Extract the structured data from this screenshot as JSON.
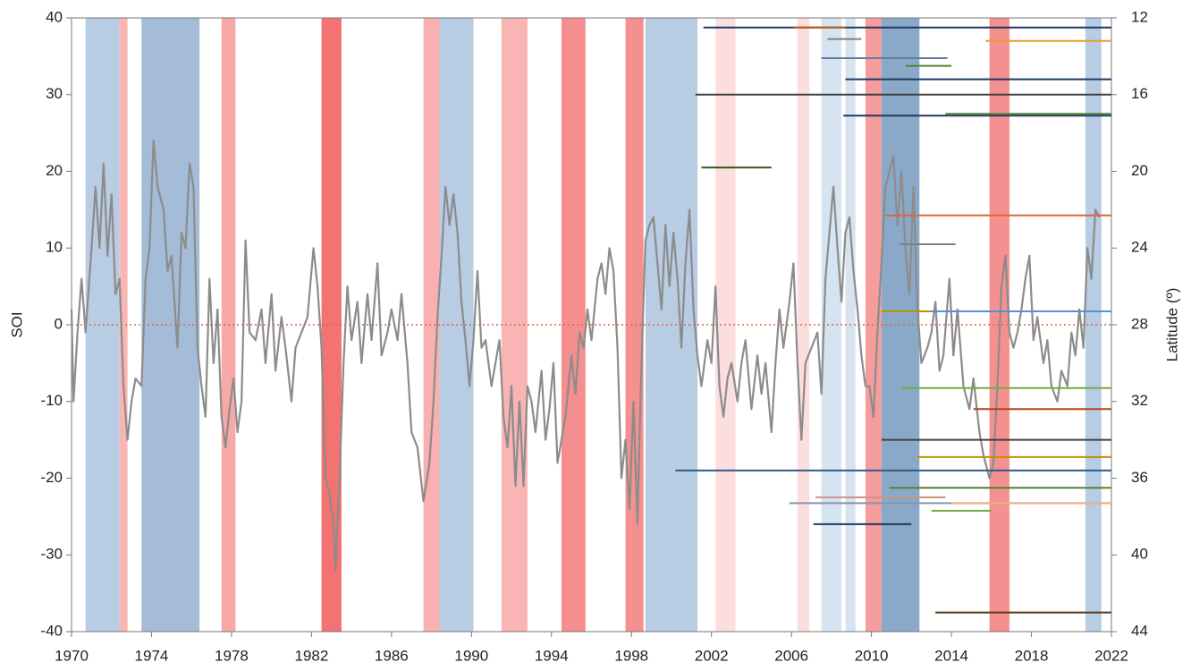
{
  "chart_data": {
    "type": "line",
    "ylabel": "SOI",
    "y2label": "Latitude (º)",
    "xlim": [
      1970,
      2022
    ],
    "xticks": [
      1970,
      1974,
      1978,
      1982,
      1986,
      1990,
      1994,
      1998,
      2002,
      2006,
      2010,
      2014,
      2018,
      2022
    ],
    "ylim": [
      -40,
      40
    ],
    "yticks": [
      -40,
      -30,
      -20,
      -10,
      0,
      10,
      20,
      30,
      40
    ],
    "y2lim": [
      12,
      44
    ],
    "y2ticks": [
      12,
      16,
      20,
      24,
      28,
      32,
      36,
      40,
      44
    ],
    "y2_inverted": true,
    "zero_line": {
      "value": 0,
      "color": "#e0643a"
    },
    "bands": [
      {
        "x": [
          1970.7,
          1972.4
        ],
        "color": "#b8cce4"
      },
      {
        "x": [
          1972.4,
          1972.8
        ],
        "color": "#f9b4b4"
      },
      {
        "x": [
          1973.5,
          1976.4
        ],
        "color": "#a4bcd8"
      },
      {
        "x": [
          1977.5,
          1978.2
        ],
        "color": "#f9a8a8"
      },
      {
        "x": [
          1982.5,
          1983.5
        ],
        "color": "#f47272"
      },
      {
        "x": [
          1987.6,
          1988.4
        ],
        "color": "#f9b0b0"
      },
      {
        "x": [
          1988.4,
          1990.1
        ],
        "color": "#b8cce4"
      },
      {
        "x": [
          1991.5,
          1992.8
        ],
        "color": "#f9b4b4"
      },
      {
        "x": [
          1994.5,
          1995.7
        ],
        "color": "#f58e8e"
      },
      {
        "x": [
          1997.7,
          1998.6
        ],
        "color": "#f59090"
      },
      {
        "x": [
          1998.7,
          2001.3
        ],
        "color": "#b8cce4"
      },
      {
        "x": [
          2002.2,
          2003.2
        ],
        "color": "#fcdede"
      },
      {
        "x": [
          2006.3,
          2006.9
        ],
        "color": "#fcdede"
      },
      {
        "x": [
          2007.5,
          2008.5
        ],
        "color": "#d6e3f1"
      },
      {
        "x": [
          2008.7,
          2009.2
        ],
        "color": "#d6e3f1"
      },
      {
        "x": [
          2009.7,
          2010.5
        ],
        "color": "#f59c9c"
      },
      {
        "x": [
          2010.5,
          2012.4
        ],
        "color": "#8aa8c8"
      },
      {
        "x": [
          2015.9,
          2016.9
        ],
        "color": "#f59090"
      },
      {
        "x": [
          2020.7,
          2021.5
        ],
        "color": "#b8cce4"
      }
    ],
    "series": [
      {
        "color": "#8c8c8c",
        "axis": "y",
        "x": [
          1970.0,
          1970.1,
          1970.3,
          1970.5,
          1970.7,
          1971.0,
          1971.2,
          1971.4,
          1971.6,
          1971.8,
          1972.0,
          1972.2,
          1972.4,
          1972.6,
          1972.8,
          1973.0,
          1973.2,
          1973.5,
          1973.7,
          1973.9,
          1974.1,
          1974.3,
          1974.6,
          1974.8,
          1975.0,
          1975.3,
          1975.5,
          1975.7,
          1975.9,
          1976.1,
          1976.3,
          1976.5,
          1976.7,
          1976.9,
          1977.1,
          1977.3,
          1977.5,
          1977.7,
          1977.9,
          1978.1,
          1978.3,
          1978.5,
          1978.7,
          1978.9,
          1979.2,
          1979.5,
          1979.7,
          1980.0,
          1980.2,
          1980.5,
          1980.7,
          1981.0,
          1981.2,
          1981.5,
          1981.8,
          1982.1,
          1982.3,
          1982.5,
          1982.7,
          1982.9,
          1983.1,
          1983.2,
          1983.4,
          1983.6,
          1983.8,
          1984.0,
          1984.3,
          1984.5,
          1984.8,
          1985.0,
          1985.3,
          1985.5,
          1985.8,
          1986.0,
          1986.3,
          1986.5,
          1986.8,
          1987.0,
          1987.3,
          1987.6,
          1987.9,
          1988.1,
          1988.3,
          1988.5,
          1988.7,
          1988.9,
          1989.1,
          1989.3,
          1989.5,
          1989.7,
          1989.9,
          1990.1,
          1990.3,
          1990.5,
          1990.7,
          1991.0,
          1991.2,
          1991.4,
          1991.6,
          1991.8,
          1992.0,
          1992.2,
          1992.4,
          1992.6,
          1992.8,
          1993.0,
          1993.2,
          1993.5,
          1993.7,
          1993.9,
          1994.1,
          1994.3,
          1994.5,
          1994.7,
          1995.0,
          1995.2,
          1995.4,
          1995.6,
          1995.8,
          1996.0,
          1996.3,
          1996.5,
          1996.7,
          1996.9,
          1997.1,
          1997.3,
          1997.5,
          1997.7,
          1997.9,
          1998.1,
          1998.3,
          1998.5,
          1998.7,
          1998.9,
          1999.1,
          1999.3,
          1999.5,
          1999.7,
          1999.9,
          2000.1,
          2000.3,
          2000.5,
          2000.7,
          2000.9,
          2001.1,
          2001.3,
          2001.5,
          2001.8,
          2002.0,
          2002.2,
          2002.4,
          2002.6,
          2002.8,
          2003.0,
          2003.3,
          2003.5,
          2003.7,
          2004.0,
          2004.3,
          2004.5,
          2004.7,
          2005.0,
          2005.2,
          2005.4,
          2005.6,
          2005.9,
          2006.1,
          2006.3,
          2006.5,
          2006.7,
          2007.0,
          2007.3,
          2007.5,
          2007.7,
          2007.9,
          2008.1,
          2008.3,
          2008.5,
          2008.7,
          2008.9,
          2009.1,
          2009.3,
          2009.5,
          2009.7,
          2009.9,
          2010.1,
          2010.3,
          2010.5,
          2010.7,
          2010.9,
          2011.1,
          2011.3,
          2011.5,
          2011.7,
          2011.9,
          2012.1,
          2012.3,
          2012.5,
          2012.8,
          2013.0,
          2013.2,
          2013.4,
          2013.6,
          2013.9,
          2014.1,
          2014.3,
          2014.6,
          2014.9,
          2015.1,
          2015.4,
          2015.6,
          2015.9,
          2016.1,
          2016.3,
          2016.5,
          2016.7,
          2016.9,
          2017.1,
          2017.3,
          2017.5,
          2017.7,
          2017.9,
          2018.1,
          2018.3,
          2018.6,
          2018.8,
          2019.0,
          2019.3,
          2019.5,
          2019.8,
          2020.0,
          2020.2,
          2020.4,
          2020.6,
          2020.8,
          2021.0,
          2021.2,
          2021.4
        ],
        "values": [
          2,
          -10,
          -1,
          6,
          -1,
          10,
          18,
          10,
          21,
          9,
          17,
          4,
          6,
          -8,
          -15,
          -10,
          -7,
          -8,
          6,
          10,
          24,
          18,
          15,
          7,
          9,
          -3,
          12,
          10,
          21,
          18,
          -3,
          -8,
          -12,
          6,
          -5,
          2,
          -12,
          -16,
          -11,
          -7,
          -14,
          -10,
          11,
          -1,
          -2,
          2,
          -5,
          4,
          -6,
          1,
          -3,
          -10,
          -3,
          -1,
          1,
          10,
          5,
          -3,
          -20,
          -22,
          -26,
          -32,
          -20,
          -5,
          5,
          -2,
          3,
          -5,
          4,
          -2,
          8,
          -4,
          -1,
          2,
          -2,
          4,
          -5,
          -14,
          -16,
          -23,
          -18,
          -10,
          1,
          9,
          18,
          13,
          17,
          12,
          3,
          -2,
          -8,
          -2,
          7,
          -3,
          -2,
          -8,
          -5,
          -2,
          -12,
          -16,
          -8,
          -21,
          -10,
          -21,
          -8,
          -10,
          -14,
          -6,
          -15,
          -11,
          -5,
          -18,
          -15,
          -12,
          -4,
          -9,
          -1,
          -3,
          2,
          -2,
          6,
          8,
          4,
          10,
          7,
          -3,
          -20,
          -15,
          -24,
          -10,
          -26,
          -5,
          11,
          13,
          14,
          8,
          2,
          13,
          5,
          12,
          6,
          -3,
          8,
          15,
          2,
          -4,
          -8,
          -2,
          -5,
          5,
          -8,
          -12,
          -7,
          -5,
          -10,
          -5,
          -2,
          -11,
          -4,
          -9,
          -5,
          -14,
          -5,
          2,
          -3,
          3,
          8,
          -5,
          -15,
          -5,
          -3,
          -1,
          -9,
          6,
          12,
          18,
          10,
          3,
          12,
          14,
          7,
          2,
          -4,
          -8,
          -8,
          -12,
          -1,
          8,
          18,
          20,
          22,
          13,
          20,
          10,
          4,
          18,
          2,
          -5,
          -3,
          -1,
          3,
          -6,
          -4,
          6,
          -4,
          2,
          -8,
          -11,
          -7,
          -14,
          -17,
          -20,
          -18,
          -8,
          5,
          9,
          -1,
          -3,
          -1,
          2,
          6,
          9,
          -2,
          1,
          -5,
          -2,
          -8,
          -10,
          -6,
          -8,
          -1,
          -4,
          2,
          -3,
          10,
          6,
          15,
          14
        ]
      },
      {
        "color": "#1f3864",
        "axis": "y2",
        "x": [
          2001.6,
          2022
        ],
        "values": [
          12.5,
          12.5
        ]
      },
      {
        "color": "#c55a11",
        "axis": "y2",
        "x": [
          2006.1,
          2008.7
        ],
        "values": [
          12.5,
          12.5
        ]
      },
      {
        "color": "#808080",
        "axis": "y2",
        "x": [
          2007.8,
          2009.5
        ],
        "values": [
          13.1,
          13.1
        ]
      },
      {
        "color": "#ed9b2f",
        "axis": "y2",
        "x": [
          2015.7,
          2022
        ],
        "values": [
          13.2,
          13.2
        ]
      },
      {
        "color": "#5f7fa6",
        "axis": "y2",
        "x": [
          2007.5,
          2013.8
        ],
        "values": [
          14.1,
          14.1
        ]
      },
      {
        "color": "#548235",
        "axis": "y2",
        "x": [
          2011.7,
          2014.0
        ],
        "values": [
          14.5,
          14.5
        ]
      },
      {
        "color": "#1f3864",
        "axis": "y2",
        "x": [
          2008.7,
          2022
        ],
        "values": [
          15.2,
          15.2
        ]
      },
      {
        "color": "#404040",
        "axis": "y2",
        "x": [
          2001.2,
          2022
        ],
        "values": [
          16.0,
          16.0
        ]
      },
      {
        "color": "#1f3864",
        "axis": "y2",
        "x": [
          2008.6,
          2022
        ],
        "values": [
          17.1,
          17.1
        ]
      },
      {
        "color": "#548235",
        "axis": "y2",
        "x": [
          2013.7,
          2022
        ],
        "values": [
          17.0,
          17.0
        ]
      },
      {
        "color": "#375623",
        "axis": "y2",
        "x": [
          2001.5,
          2005.0
        ],
        "values": [
          19.8,
          19.8
        ]
      },
      {
        "color": "#e0643a",
        "axis": "y2",
        "x": [
          2010.7,
          2022
        ],
        "values": [
          22.3,
          22.3
        ]
      },
      {
        "color": "#808080",
        "axis": "y2",
        "x": [
          2011.4,
          2014.2
        ],
        "values": [
          23.8,
          23.8
        ]
      },
      {
        "color": "#bf9000",
        "axis": "y2",
        "x": [
          2010.5,
          2022
        ],
        "values": [
          27.3,
          27.3
        ]
      },
      {
        "color": "#5b8fd0",
        "axis": "y2",
        "x": [
          2013.0,
          2022
        ],
        "values": [
          27.3,
          27.3
        ]
      },
      {
        "color": "#70ad47",
        "axis": "y2",
        "x": [
          2011.5,
          2022
        ],
        "values": [
          31.3,
          31.3
        ]
      },
      {
        "color": "#b5441a",
        "axis": "y2",
        "x": [
          2015.1,
          2022
        ],
        "values": [
          32.4,
          32.4
        ]
      },
      {
        "color": "#404040",
        "axis": "y2",
        "x": [
          2010.5,
          2022
        ],
        "values": [
          34.0,
          34.0
        ]
      },
      {
        "color": "#bf9000",
        "axis": "y2",
        "x": [
          2012.3,
          2022
        ],
        "values": [
          34.9,
          34.9
        ]
      },
      {
        "color": "#2e5c8a",
        "axis": "y2",
        "x": [
          2000.2,
          2022
        ],
        "values": [
          35.6,
          35.6
        ]
      },
      {
        "color": "#548235",
        "axis": "y2",
        "x": [
          2010.9,
          2022
        ],
        "values": [
          36.5,
          36.5
        ]
      },
      {
        "color": "#c8967a",
        "axis": "y2",
        "x": [
          2007.2,
          2013.7
        ],
        "values": [
          37.0,
          37.0
        ]
      },
      {
        "color": "#8496b0",
        "axis": "y2",
        "x": [
          2005.9,
          2022
        ],
        "values": [
          37.3,
          37.3
        ]
      },
      {
        "color": "#f4b183",
        "axis": "y2",
        "x": [
          2014.0,
          2022
        ],
        "values": [
          37.3,
          37.3
        ]
      },
      {
        "color": "#70ad47",
        "axis": "y2",
        "x": [
          2013.0,
          2016.0
        ],
        "values": [
          37.7,
          37.7
        ]
      },
      {
        "color": "#1f3864",
        "axis": "y2",
        "x": [
          2007.1,
          2012.0
        ],
        "values": [
          38.4,
          38.4
        ]
      },
      {
        "color": "#5a3a14",
        "axis": "y2",
        "x": [
          2013.2,
          2022
        ],
        "values": [
          43.0,
          43.0
        ]
      }
    ]
  }
}
